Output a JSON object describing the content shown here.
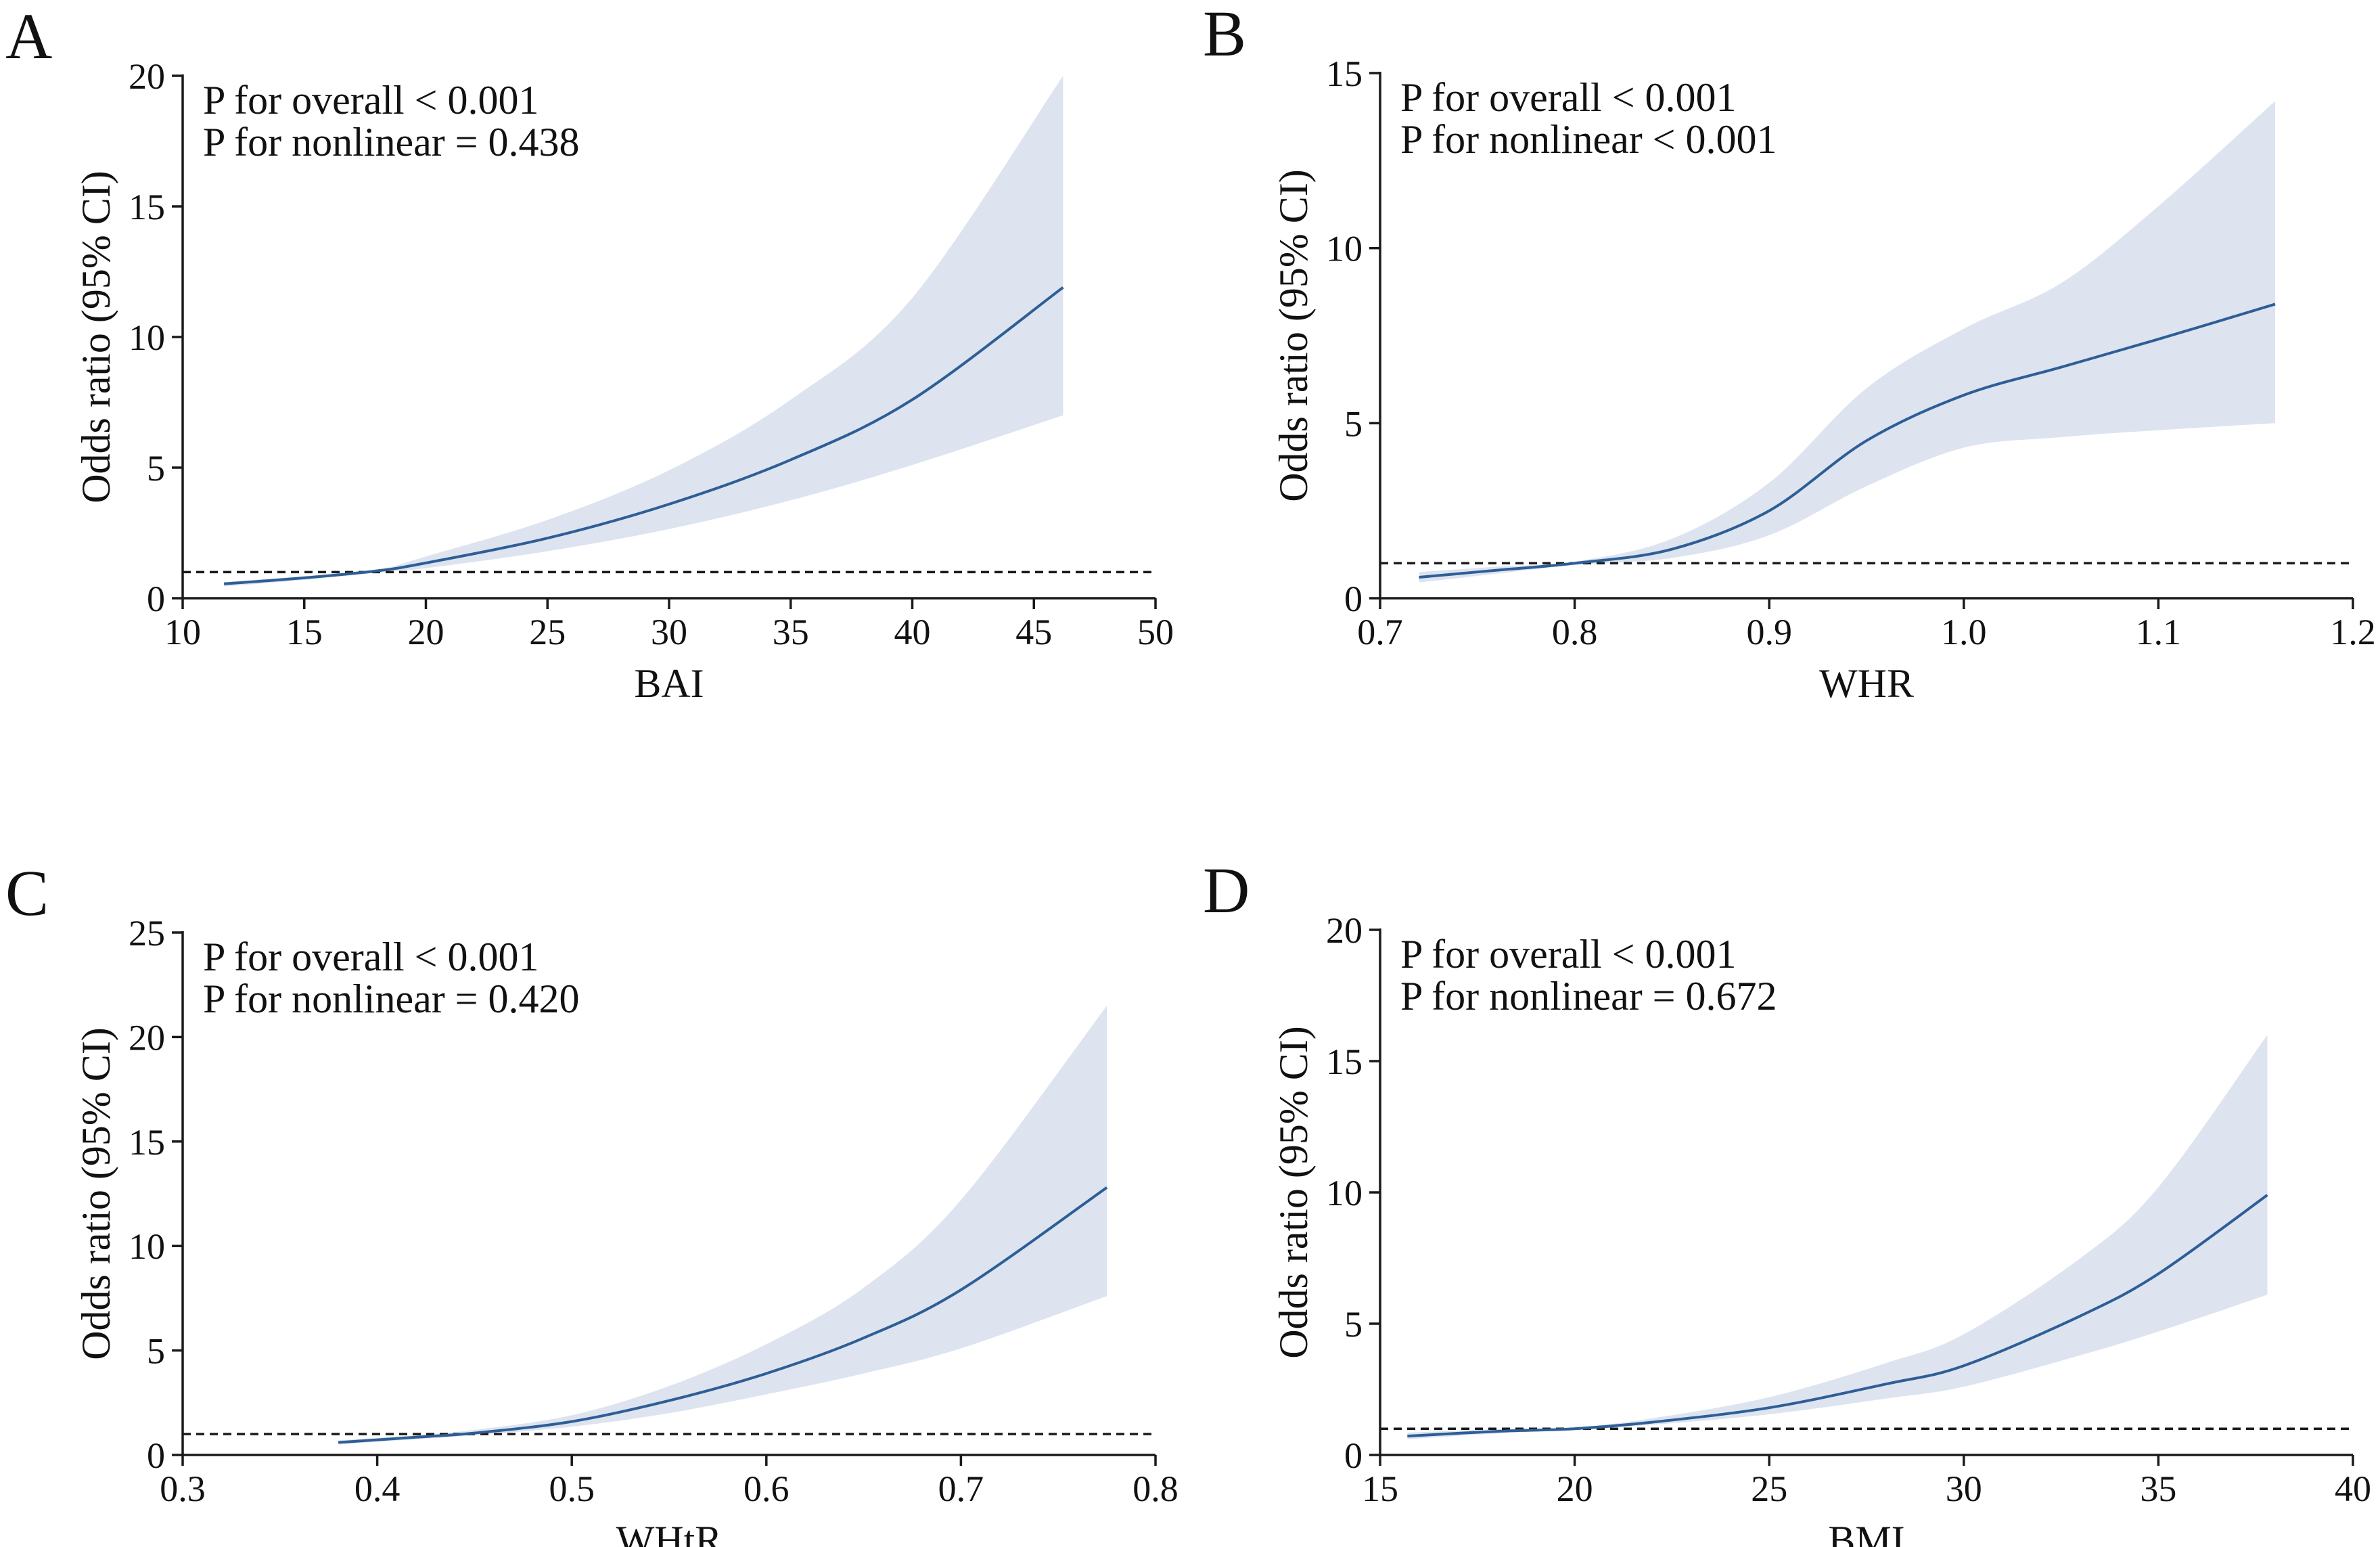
{
  "colors": {
    "line": "#2e5e96",
    "band": "#dde4f0",
    "axis": "#1a1a1a",
    "reference": "#1a1a1a"
  },
  "chart_data": [
    {
      "panel": "A",
      "type": "line",
      "xlabel": "BAI",
      "ylabel": "Odds ratio (95% CI)",
      "xlim": [
        10,
        50
      ],
      "ylim": [
        0,
        20
      ],
      "xticks": [
        10,
        15,
        20,
        25,
        30,
        35,
        40,
        45,
        50
      ],
      "yticks": [
        0,
        5,
        10,
        15,
        20
      ],
      "reference_y": 1,
      "annotations": [
        "P for overall < 0.001",
        "P for nonlinear = 0.438"
      ],
      "series": [
        {
          "name": "odds_ratio",
          "x": [
            11.7,
            15,
            18,
            20,
            25,
            30,
            35,
            40,
            46.2
          ],
          "values": [
            0.55,
            0.78,
            1.05,
            1.35,
            2.3,
            3.6,
            5.3,
            7.6,
            11.9
          ]
        },
        {
          "name": "ci_lower",
          "x": [
            11.7,
            15,
            18,
            20,
            25,
            30,
            35,
            40,
            46.2
          ],
          "values": [
            0.45,
            0.7,
            0.98,
            1.15,
            1.8,
            2.65,
            3.75,
            5.1,
            7.0
          ]
        },
        {
          "name": "ci_upper",
          "x": [
            11.7,
            15,
            18,
            20,
            25,
            30,
            35,
            40,
            46.2
          ],
          "values": [
            0.62,
            0.85,
            1.1,
            1.6,
            3.0,
            4.9,
            7.6,
            11.5,
            20.0
          ]
        }
      ]
    },
    {
      "panel": "B",
      "type": "line",
      "xlabel": "WHR",
      "ylabel": "Odds ratio (95% CI)",
      "xlim": [
        0.7,
        1.2
      ],
      "ylim": [
        0,
        15
      ],
      "xticks": [
        0.7,
        0.8,
        0.9,
        1.0,
        1.1,
        1.2
      ],
      "xtick_labels": [
        "0.7",
        "0.8",
        "0.9",
        "1.0",
        "1.1",
        "1.2"
      ],
      "yticks": [
        0,
        5,
        10,
        15
      ],
      "reference_y": 1,
      "annotations": [
        "P for overall < 0.001",
        "P for nonlinear < 0.001"
      ],
      "series": [
        {
          "name": "odds_ratio",
          "x": [
            0.72,
            0.76,
            0.8,
            0.85,
            0.9,
            0.95,
            1.0,
            1.05,
            1.1,
            1.16
          ],
          "values": [
            0.6,
            0.8,
            1.0,
            1.4,
            2.5,
            4.5,
            5.8,
            6.6,
            7.4,
            8.4
          ]
        },
        {
          "name": "ci_lower",
          "x": [
            0.72,
            0.76,
            0.8,
            0.85,
            0.9,
            0.95,
            1.0,
            1.05,
            1.1,
            1.16
          ],
          "values": [
            0.45,
            0.7,
            0.95,
            1.15,
            1.8,
            3.2,
            4.3,
            4.6,
            4.8,
            5.0
          ]
        },
        {
          "name": "ci_upper",
          "x": [
            0.72,
            0.76,
            0.8,
            0.85,
            0.9,
            0.95,
            1.0,
            1.05,
            1.1,
            1.16
          ],
          "values": [
            0.75,
            0.9,
            1.05,
            1.7,
            3.3,
            6.0,
            7.7,
            9.0,
            11.2,
            14.2
          ]
        }
      ]
    },
    {
      "panel": "C",
      "type": "line",
      "xlabel": "WHtR",
      "ylabel": "Odds ratio (95% CI)",
      "xlim": [
        0.3,
        0.8
      ],
      "ylim": [
        0,
        25
      ],
      "xticks": [
        0.3,
        0.4,
        0.5,
        0.6,
        0.7,
        0.8
      ],
      "xtick_labels": [
        "0.3",
        "0.4",
        "0.5",
        "0.6",
        "0.7",
        "0.8"
      ],
      "yticks": [
        0,
        5,
        10,
        15,
        20,
        25
      ],
      "reference_y": 1,
      "annotations": [
        "P for overall < 0.001",
        "P for nonlinear = 0.420"
      ],
      "series": [
        {
          "name": "odds_ratio",
          "x": [
            0.38,
            0.42,
            0.45,
            0.5,
            0.55,
            0.6,
            0.65,
            0.7,
            0.775
          ],
          "values": [
            0.6,
            0.85,
            1.05,
            1.6,
            2.6,
            3.9,
            5.6,
            7.9,
            12.8
          ]
        },
        {
          "name": "ci_lower",
          "x": [
            0.38,
            0.42,
            0.45,
            0.5,
            0.55,
            0.6,
            0.65,
            0.7,
            0.775
          ],
          "values": [
            0.5,
            0.75,
            0.95,
            1.35,
            2.0,
            2.9,
            3.9,
            5.1,
            7.6
          ]
        },
        {
          "name": "ci_upper",
          "x": [
            0.38,
            0.42,
            0.45,
            0.5,
            0.55,
            0.6,
            0.65,
            0.7,
            0.775
          ],
          "values": [
            0.7,
            0.95,
            1.2,
            1.9,
            3.3,
            5.3,
            8.0,
            12.2,
            21.5
          ]
        }
      ]
    },
    {
      "panel": "D",
      "type": "line",
      "xlabel": "BMI",
      "ylabel": "Odds ratio (95% CI)",
      "xlim": [
        15,
        40
      ],
      "ylim": [
        0,
        20
      ],
      "xticks": [
        15,
        20,
        25,
        30,
        35,
        40
      ],
      "yticks": [
        0,
        5,
        10,
        15,
        20
      ],
      "reference_y": 1,
      "annotations": [
        "P for overall < 0.001",
        "P for nonlinear = 0.672"
      ],
      "series": [
        {
          "name": "odds_ratio",
          "x": [
            15.7,
            18,
            20,
            22,
            25,
            28,
            30,
            33,
            35,
            37.8
          ],
          "values": [
            0.72,
            0.9,
            1.0,
            1.25,
            1.8,
            2.7,
            3.4,
            5.3,
            6.9,
            9.9
          ]
        },
        {
          "name": "ci_lower",
          "x": [
            15.7,
            18,
            20,
            22,
            25,
            28,
            30,
            33,
            35,
            37.8
          ],
          "values": [
            0.6,
            0.82,
            0.97,
            1.15,
            1.55,
            2.15,
            2.6,
            3.8,
            4.7,
            6.1
          ]
        },
        {
          "name": "ci_upper",
          "x": [
            15.7,
            18,
            20,
            22,
            25,
            28,
            30,
            33,
            35,
            37.8
          ],
          "values": [
            0.85,
            0.98,
            1.05,
            1.4,
            2.2,
            3.5,
            4.6,
            7.5,
            10.2,
            16.0
          ]
        }
      ]
    }
  ]
}
